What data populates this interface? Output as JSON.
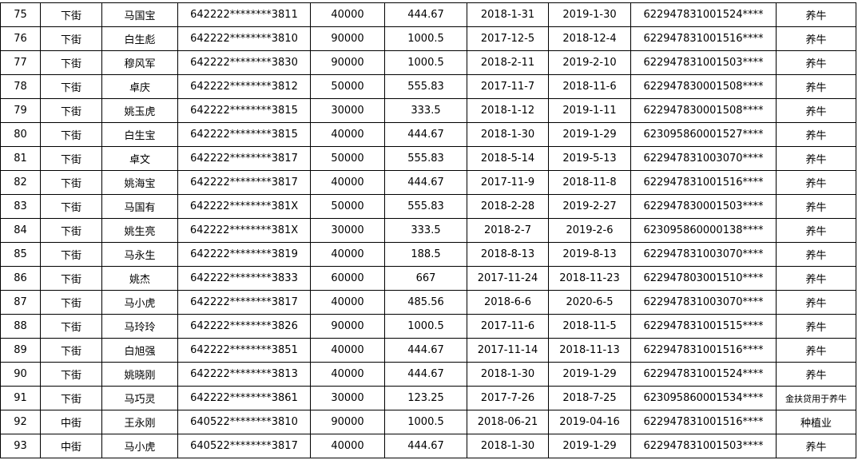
{
  "table": {
    "rows": [
      [
        "75",
        "下街",
        "马国宝",
        "642222********3811",
        "40000",
        "444.67",
        "2018-1-31",
        "2019-1-30",
        "622947831001524****",
        "养牛"
      ],
      [
        "76",
        "下街",
        "白生彪",
        "642222********3810",
        "90000",
        "1000.5",
        "2017-12-5",
        "2018-12-4",
        "622947831001516****",
        "养牛"
      ],
      [
        "77",
        "下街",
        "穆风军",
        "642222********3830",
        "90000",
        "1000.5",
        "2018-2-11",
        "2019-2-10",
        "622947831001503****",
        "养牛"
      ],
      [
        "78",
        "下街",
        "卓庆",
        "642222********3812",
        "50000",
        "555.83",
        "2017-11-7",
        "2018-11-6",
        "622947830001508****",
        "养牛"
      ],
      [
        "79",
        "下街",
        "姚玉虎",
        "642222********3815",
        "30000",
        "333.5",
        "2018-1-12",
        "2019-1-11",
        "622947830001508****",
        "养牛"
      ],
      [
        "80",
        "下街",
        "白生宝",
        "642222********3815",
        "40000",
        "444.67",
        "2018-1-30",
        "2019-1-29",
        "623095860001527****",
        "养牛"
      ],
      [
        "81",
        "下街",
        "卓文",
        "642222********3817",
        "50000",
        "555.83",
        "2018-5-14",
        "2019-5-13",
        "622947831003070****",
        "养牛"
      ],
      [
        "82",
        "下街",
        "姚海宝",
        "642222********3817",
        "40000",
        "444.67",
        "2017-11-9",
        "2018-11-8",
        "622947831001516****",
        "养牛"
      ],
      [
        "83",
        "下街",
        "马国有",
        "642222********381X",
        "50000",
        "555.83",
        "2018-2-28",
        "2019-2-27",
        "622947830001503****",
        "养牛"
      ],
      [
        "84",
        "下街",
        "姚生亮",
        "642222********381X",
        "30000",
        "333.5",
        "2018-2-7",
        "2019-2-6",
        "623095860000138****",
        "养牛"
      ],
      [
        "85",
        "下街",
        "马永生",
        "642222********3819",
        "40000",
        "188.5",
        "2018-8-13",
        "2019-8-13",
        "622947831003070****",
        "养牛"
      ],
      [
        "86",
        "下街",
        "姚杰",
        "642222********3833",
        "60000",
        "667",
        "2017-11-24",
        "2018-11-23",
        "622947803001510****",
        "养牛"
      ],
      [
        "87",
        "下街",
        "马小虎",
        "642222********3817",
        "40000",
        "485.56",
        "2018-6-6",
        "2020-6-5",
        "622947831003070****",
        "养牛"
      ],
      [
        "88",
        "下街",
        "马玲玲",
        "642222********3826",
        "90000",
        "1000.5",
        "2017-11-6",
        "2018-11-5",
        "622947831001515****",
        "养牛"
      ],
      [
        "89",
        "下街",
        "白旭强",
        "642222********3851",
        "40000",
        "444.67",
        "2017-11-14",
        "2018-11-13",
        "622947831001516****",
        "养牛"
      ],
      [
        "90",
        "下街",
        "姚晓刚",
        "642222********3813",
        "40000",
        "444.67",
        "2018-1-30",
        "2019-1-29",
        "622947831001524****",
        "养牛"
      ],
      [
        "91",
        "下街",
        "马巧灵",
        "642222********3861",
        "30000",
        "123.25",
        "2017-7-26",
        "2018-7-25",
        "623095860001534****",
        "金扶贷用于养牛"
      ],
      [
        "92",
        "中街",
        "王永刚",
        "640522********3810",
        "90000",
        "1000.5",
        "2018-06-21",
        "2019-04-16",
        "622947831001516****",
        "种植业"
      ],
      [
        "93",
        "中街",
        "马小虎",
        "640522********3817",
        "40000",
        "444.67",
        "2018-1-30",
        "2019-1-29",
        "622947831001503****",
        "养牛"
      ]
    ]
  }
}
